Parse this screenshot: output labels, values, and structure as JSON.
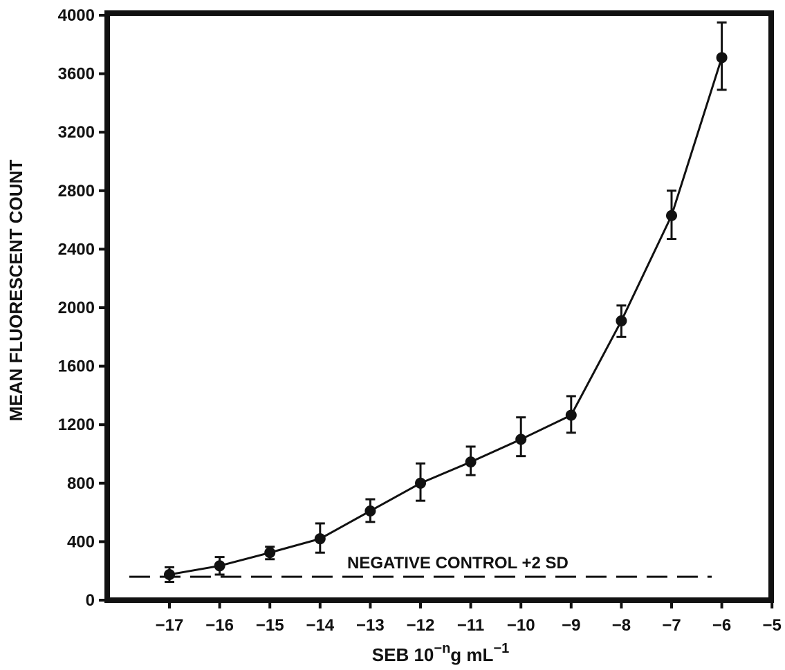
{
  "chart_data": {
    "type": "line",
    "title": "",
    "ylabel": "MEAN FLUORESCENT COUNT",
    "xlabel": {
      "prefix": "SEB  10",
      "sup": "−n",
      "mid": "g   mL",
      "sup2": "−1"
    },
    "xlim": [
      -18,
      -5
    ],
    "ylim": [
      0,
      4000
    ],
    "x_ticks": [
      -17,
      -16,
      -15,
      -14,
      -13,
      -12,
      -11,
      -10,
      -9,
      -8,
      -7,
      -6,
      -5
    ],
    "x_tick_labels": [
      "−17",
      "−16",
      "−15",
      "−14",
      "−13",
      "−12",
      "−11",
      "−10",
      "−9",
      "−8",
      "−7",
      "−6",
      "−5"
    ],
    "y_ticks": [
      0,
      400,
      800,
      1200,
      1600,
      2000,
      2400,
      2800,
      3200,
      3600,
      4000
    ],
    "y_tick_labels": [
      "0",
      "400",
      "800",
      "1200",
      "1600",
      "2000",
      "2400",
      "2800",
      "3200",
      "3600",
      "4000"
    ],
    "grid": false,
    "series": [
      {
        "x": [
          -17,
          -16,
          -15,
          -14,
          -13,
          -12,
          -11,
          -10,
          -9,
          -8,
          -7,
          -6
        ],
        "y": [
          175,
          235,
          325,
          420,
          610,
          800,
          945,
          1100,
          1265,
          1910,
          2630,
          3710
        ],
        "err_upper": [
          225,
          295,
          365,
          525,
          690,
          935,
          1050,
          1250,
          1395,
          2015,
          2800,
          3950
        ],
        "err_lower": [
          125,
          175,
          280,
          325,
          535,
          680,
          855,
          985,
          1145,
          1800,
          2470,
          3490
        ]
      }
    ],
    "reference_line": {
      "label": "NEGATIVE CONTROL  +2 SD",
      "y": 160,
      "x_start": -17.8,
      "x_end": -6.2,
      "style": "dashed"
    }
  }
}
